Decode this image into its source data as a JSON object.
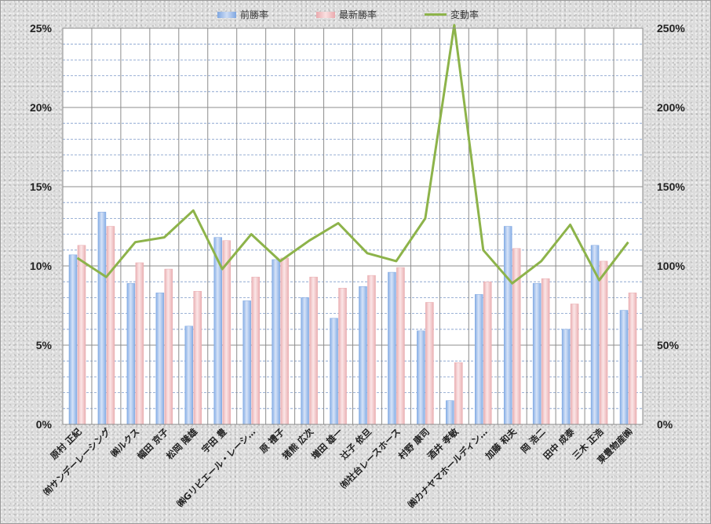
{
  "legend": {
    "prev_label": "前勝率",
    "new_label": "最新勝率",
    "change_label": "変動率"
  },
  "colors": {
    "prev_bar": "#a9c4ec",
    "new_bar": "#f1c6c8",
    "change_line": "#8db34a"
  },
  "chart_data": {
    "type": "bar",
    "title": "",
    "xlabel": "",
    "ylabel": "",
    "categories": [
      "原村 正紀",
      "㈲サンデーレーシング",
      "㈱ルクス",
      "幅田 京子",
      "松岡 隆雄",
      "宇田 豊",
      "㈱Gリビエール・レーシ…",
      "原 禮子",
      "猪熊 広次",
      "増田 雄一",
      "辻子 依旦",
      "㈲社台レースホース",
      "村野 康司",
      "酒井 孝敏",
      "㈱カナヤマホールディン…",
      "加藤 和夫",
      "岡 浩二",
      "田中 成泰",
      "三木 正浩",
      "東豊物産㈱"
    ],
    "series": [
      {
        "name": "前勝率",
        "axis": "left",
        "kind": "bar",
        "values": [
          10.7,
          13.4,
          8.9,
          8.3,
          6.2,
          11.8,
          7.8,
          10.4,
          8.0,
          6.7,
          8.7,
          9.6,
          5.9,
          1.5,
          8.2,
          12.5,
          8.9,
          6.0,
          11.3,
          7.2
        ]
      },
      {
        "name": "最新勝率",
        "axis": "left",
        "kind": "bar",
        "values": [
          11.3,
          12.5,
          10.2,
          9.8,
          8.4,
          11.6,
          9.3,
          10.5,
          9.3,
          8.6,
          9.4,
          9.9,
          7.7,
          3.9,
          9.0,
          11.1,
          9.2,
          7.6,
          10.3,
          8.3
        ]
      },
      {
        "name": "変動率",
        "axis": "right",
        "kind": "line",
        "values": [
          105,
          93,
          115,
          118,
          135,
          98,
          120,
          103,
          116,
          127,
          108,
          103,
          130,
          252,
          110,
          89,
          103,
          126,
          91,
          115
        ]
      }
    ],
    "y_left": {
      "min": 0,
      "max": 25,
      "ticks": [
        "0%",
        "5%",
        "10%",
        "15%",
        "20%",
        "25%"
      ]
    },
    "y_right": {
      "min": 0,
      "max": 250,
      "ticks": [
        "0%",
        "50%",
        "100%",
        "150%",
        "200%",
        "250%"
      ]
    },
    "grid": true,
    "legend_position": "top"
  }
}
